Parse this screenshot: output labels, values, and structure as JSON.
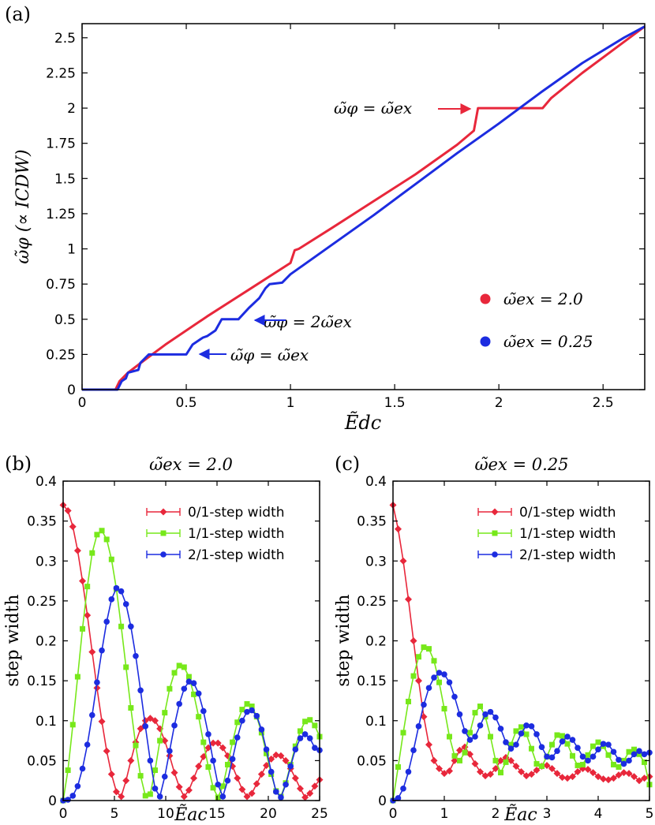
{
  "panels": {
    "a": {
      "tag": "(a)",
      "xlabel": "Ẽdc",
      "ylabel": "ω̃φ (∝ ICDW)"
    },
    "b": {
      "tag": "(b)",
      "title": "ω̃ex = 2.0",
      "xlabel": "Ẽac",
      "ylabel": "step width"
    },
    "c": {
      "tag": "(c)",
      "title": "ω̃ex = 0.25",
      "xlabel": "Ẽac",
      "ylabel": "step width"
    }
  },
  "colors": {
    "red": "#e8273b",
    "green": "#77e81a",
    "blue": "#1c2ce0"
  },
  "chart_data": [
    {
      "type": "line",
      "panel": "a",
      "title": "",
      "xlabel": "Ẽdc",
      "ylabel": "ω̃φ (∝ ICDW)",
      "xlim": [
        0,
        2.7
      ],
      "ylim": [
        0,
        2.6
      ],
      "xticks": [
        "0",
        "0.5",
        "1",
        "1.5",
        "2",
        "2.5"
      ],
      "xtick_values": [
        0,
        0.5,
        1,
        1.5,
        2,
        2.5
      ],
      "yticks": [
        "0",
        "0.25",
        "0.5",
        "0.75",
        "1",
        "1.25",
        "1.5",
        "1.75",
        "2",
        "2.25",
        "2.5"
      ],
      "ytick_values": [
        0,
        0.25,
        0.5,
        0.75,
        1,
        1.25,
        1.5,
        1.75,
        2,
        2.25,
        2.5
      ],
      "legend_position": "bottom-right",
      "series": [
        {
          "name": "ω̃ex = 2.0",
          "color": "#e8273b",
          "points": [
            [
              0,
              0
            ],
            [
              0.16,
              0
            ],
            [
              0.18,
              0.06
            ],
            [
              0.22,
              0.12
            ],
            [
              0.3,
              0.21
            ],
            [
              0.4,
              0.32
            ],
            [
              0.6,
              0.52
            ],
            [
              0.8,
              0.71
            ],
            [
              1.0,
              0.9
            ],
            [
              1.02,
              0.99
            ],
            [
              1.04,
              1.0
            ],
            [
              1.2,
              1.15
            ],
            [
              1.4,
              1.34
            ],
            [
              1.6,
              1.53
            ],
            [
              1.8,
              1.74
            ],
            [
              1.88,
              1.84
            ],
            [
              1.9,
              2.0
            ],
            [
              2.21,
              2.0
            ],
            [
              2.25,
              2.07
            ],
            [
              2.4,
              2.25
            ],
            [
              2.6,
              2.47
            ],
            [
              2.7,
              2.58
            ]
          ]
        },
        {
          "name": "ω̃ex = 0.25",
          "color": "#1c2ce0",
          "points": [
            [
              0,
              0
            ],
            [
              0.17,
              0
            ],
            [
              0.19,
              0.06
            ],
            [
              0.21,
              0.08
            ],
            [
              0.22,
              0.12
            ],
            [
              0.27,
              0.14
            ],
            [
              0.28,
              0.19
            ],
            [
              0.32,
              0.25
            ],
            [
              0.5,
              0.25
            ],
            [
              0.53,
              0.32
            ],
            [
              0.57,
              0.36
            ],
            [
              0.58,
              0.37
            ],
            [
              0.6,
              0.38
            ],
            [
              0.64,
              0.42
            ],
            [
              0.67,
              0.5
            ],
            [
              0.75,
              0.5
            ],
            [
              0.8,
              0.58
            ],
            [
              0.85,
              0.65
            ],
            [
              0.88,
              0.72
            ],
            [
              0.9,
              0.75
            ],
            [
              0.96,
              0.76
            ],
            [
              1.0,
              0.82
            ],
            [
              1.2,
              1.03
            ],
            [
              1.4,
              1.24
            ],
            [
              1.6,
              1.46
            ],
            [
              1.8,
              1.68
            ],
            [
              2.0,
              1.89
            ],
            [
              2.2,
              2.11
            ],
            [
              2.4,
              2.32
            ],
            [
              2.6,
              2.5
            ],
            [
              2.7,
              2.58
            ]
          ]
        }
      ],
      "annotations": [
        {
          "text": "ω̃φ = ω̃ex",
          "arrow_to": [
            1.9,
            2.0
          ],
          "color": "#e8273b"
        },
        {
          "text": "ω̃φ = 2ω̃ex",
          "arrow_to": [
            0.82,
            0.5
          ],
          "color": "#1c2ce0"
        },
        {
          "text": "ω̃φ = ω̃ex",
          "arrow_to": [
            0.56,
            0.25
          ],
          "color": "#1c2ce0"
        }
      ]
    },
    {
      "type": "line",
      "panel": "b",
      "title": "ω̃ex = 2.0",
      "xlabel": "Ẽac",
      "ylabel": "step width",
      "xlim": [
        0,
        25
      ],
      "ylim": [
        0,
        0.4
      ],
      "xticks": [
        "0",
        "5",
        "10",
        "15",
        "20",
        "25"
      ],
      "xtick_values": [
        0,
        5,
        10,
        15,
        20,
        25
      ],
      "yticks": [
        "0",
        "0.05",
        "0.1",
        "0.15",
        "0.2",
        "0.25",
        "0.3",
        "0.35",
        "0.4"
      ],
      "ytick_values": [
        0,
        0.05,
        0.1,
        0.15,
        0.2,
        0.25,
        0.3,
        0.35,
        0.4
      ],
      "legend_position": "top-right",
      "series": [
        {
          "name": "0/1-step width",
          "color": "#e8273b",
          "marker": "diamond",
          "values": [
            0.37,
            0.363,
            0.343,
            0.313,
            0.275,
            0.232,
            0.186,
            0.141,
            0.099,
            0.062,
            0.033,
            0.011,
            0.005,
            0.025,
            0.05,
            0.073,
            0.09,
            0.1,
            0.103,
            0.1,
            0.09,
            0.075,
            0.056,
            0.035,
            0.017,
            0.005,
            0.013,
            0.028,
            0.043,
            0.055,
            0.066,
            0.072,
            0.072,
            0.066,
            0.056,
            0.043,
            0.028,
            0.014,
            0.005,
            0.009,
            0.021,
            0.033,
            0.044,
            0.052,
            0.057,
            0.056,
            0.05,
            0.04,
            0.028,
            0.015,
            0.004,
            0.009,
            0.018,
            0.026
          ]
        },
        {
          "name": "1/1-step width",
          "color": "#77e81a",
          "marker": "square",
          "values": [
            0,
            0.038,
            0.095,
            0.155,
            0.215,
            0.268,
            0.31,
            0.333,
            0.338,
            0.327,
            0.302,
            0.265,
            0.218,
            0.167,
            0.116,
            0.069,
            0.031,
            0.006,
            0.008,
            0.038,
            0.075,
            0.11,
            0.14,
            0.16,
            0.169,
            0.167,
            0.155,
            0.133,
            0.105,
            0.073,
            0.042,
            0.016,
            0.004,
            0.018,
            0.045,
            0.073,
            0.098,
            0.114,
            0.121,
            0.118,
            0.105,
            0.085,
            0.059,
            0.033,
            0.012,
            0.005,
            0.022,
            0.045,
            0.068,
            0.087,
            0.099,
            0.101,
            0.094,
            0.08
          ]
        },
        {
          "name": "2/1-step width",
          "color": "#1c2ce0",
          "marker": "circle",
          "values": [
            0,
            0.001,
            0.006,
            0.018,
            0.04,
            0.07,
            0.107,
            0.148,
            0.188,
            0.224,
            0.252,
            0.266,
            0.262,
            0.246,
            0.218,
            0.181,
            0.138,
            0.093,
            0.05,
            0.015,
            0.005,
            0.03,
            0.062,
            0.094,
            0.121,
            0.14,
            0.149,
            0.147,
            0.134,
            0.112,
            0.083,
            0.05,
            0.02,
            0.005,
            0.025,
            0.052,
            0.079,
            0.1,
            0.111,
            0.113,
            0.106,
            0.089,
            0.064,
            0.036,
            0.011,
            0.004,
            0.02,
            0.043,
            0.064,
            0.078,
            0.083,
            0.078,
            0.066,
            0.063
          ]
        }
      ]
    },
    {
      "type": "line",
      "panel": "c",
      "title": "ω̃ex = 0.25",
      "xlabel": "Ẽac",
      "ylabel": "step width",
      "xlim": [
        0,
        5
      ],
      "ylim": [
        0,
        0.4
      ],
      "xticks": [
        "0",
        "1",
        "2",
        "3",
        "4",
        "5"
      ],
      "xtick_values": [
        0,
        1,
        2,
        3,
        4,
        5
      ],
      "yticks": [
        "0",
        "0.05",
        "0.1",
        "0.15",
        "0.2",
        "0.25",
        "0.3",
        "0.35",
        "0.4"
      ],
      "ytick_values": [
        0,
        0.05,
        0.1,
        0.15,
        0.2,
        0.25,
        0.3,
        0.35,
        0.4
      ],
      "legend_position": "top-right",
      "series": [
        {
          "name": "0/1-step width",
          "color": "#e8273b",
          "marker": "diamond",
          "values": [
            0.37,
            0.34,
            0.3,
            0.252,
            0.2,
            0.15,
            0.105,
            0.07,
            0.05,
            0.04,
            0.034,
            0.037,
            0.05,
            0.063,
            0.067,
            0.058,
            0.046,
            0.036,
            0.031,
            0.033,
            0.04,
            0.05,
            0.054,
            0.05,
            0.043,
            0.036,
            0.031,
            0.033,
            0.038,
            0.043,
            0.044,
            0.04,
            0.034,
            0.029,
            0.028,
            0.03,
            0.036,
            0.04,
            0.039,
            0.035,
            0.03,
            0.027,
            0.026,
            0.028,
            0.032,
            0.035,
            0.034,
            0.03,
            0.025,
            0.028,
            0.03
          ]
        },
        {
          "name": "1/1-step width",
          "color": "#77e81a",
          "marker": "square",
          "values": [
            0,
            0.042,
            0.085,
            0.124,
            0.156,
            0.18,
            0.192,
            0.19,
            0.175,
            0.148,
            0.115,
            0.08,
            0.056,
            0.05,
            0.06,
            0.085,
            0.11,
            0.118,
            0.105,
            0.08,
            0.05,
            0.035,
            0.048,
            0.07,
            0.087,
            0.092,
            0.083,
            0.065,
            0.046,
            0.043,
            0.055,
            0.07,
            0.082,
            0.081,
            0.071,
            0.056,
            0.044,
            0.045,
            0.057,
            0.068,
            0.073,
            0.068,
            0.057,
            0.045,
            0.042,
            0.05,
            0.061,
            0.064,
            0.058,
            0.048,
            0.02
          ]
        },
        {
          "name": "2/1-step width",
          "color": "#1c2ce0",
          "marker": "circle",
          "values": [
            0,
            0.003,
            0.015,
            0.036,
            0.063,
            0.093,
            0.12,
            0.141,
            0.154,
            0.16,
            0.158,
            0.148,
            0.13,
            0.108,
            0.087,
            0.076,
            0.08,
            0.094,
            0.108,
            0.111,
            0.104,
            0.09,
            0.073,
            0.065,
            0.07,
            0.084,
            0.094,
            0.093,
            0.083,
            0.067,
            0.055,
            0.054,
            0.062,
            0.074,
            0.08,
            0.076,
            0.066,
            0.055,
            0.05,
            0.055,
            0.064,
            0.071,
            0.07,
            0.061,
            0.051,
            0.046,
            0.05,
            0.058,
            0.062,
            0.058,
            0.06
          ]
        }
      ]
    }
  ]
}
